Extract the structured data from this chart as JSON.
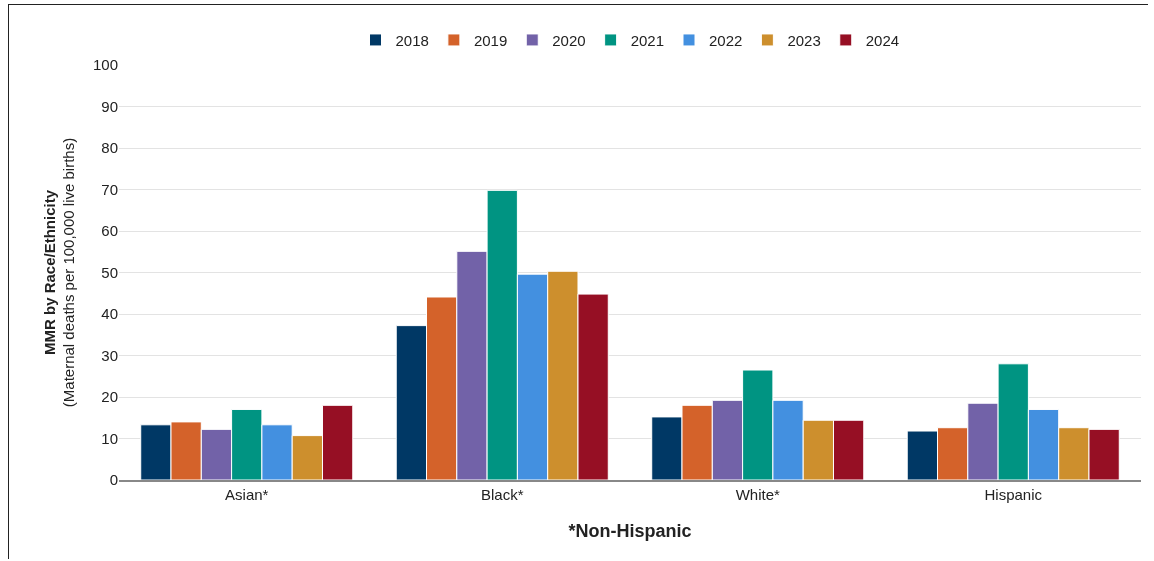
{
  "chart_data": {
    "type": "bar",
    "categories": [
      "Asian*",
      "Black*",
      "White*",
      "Hispanic"
    ],
    "xlabel": "*Non-Hispanic",
    "ylabel": "MMR by Race/Ethnicity\n(Maternal deaths per 100,000 live births)",
    "ylim": [
      0,
      100
    ],
    "yticks": [
      0,
      10,
      20,
      30,
      40,
      50,
      60,
      70,
      80,
      90,
      100
    ],
    "grid": "y",
    "legend": "top",
    "series": [
      {
        "name": "2018",
        "color": "#003865",
        "values": [
          13.3,
          37.2,
          15.2,
          11.8
        ]
      },
      {
        "name": "2019",
        "color": "#d4622a",
        "values": [
          14.0,
          44.1,
          18.0,
          12.6
        ]
      },
      {
        "name": "2020",
        "color": "#7262a8",
        "values": [
          12.2,
          55.1,
          19.2,
          18.5
        ]
      },
      {
        "name": "2021",
        "color": "#009482",
        "values": [
          17.0,
          69.8,
          26.5,
          28.0
        ]
      },
      {
        "name": "2022",
        "color": "#4390e0",
        "values": [
          13.3,
          49.6,
          19.2,
          17.0
        ]
      },
      {
        "name": "2023",
        "color": "#cd8f2d",
        "values": [
          10.7,
          50.3,
          14.4,
          12.6
        ]
      },
      {
        "name": "2024",
        "color": "#960f24",
        "values": [
          18.0,
          44.8,
          14.4,
          12.2
        ]
      }
    ]
  }
}
